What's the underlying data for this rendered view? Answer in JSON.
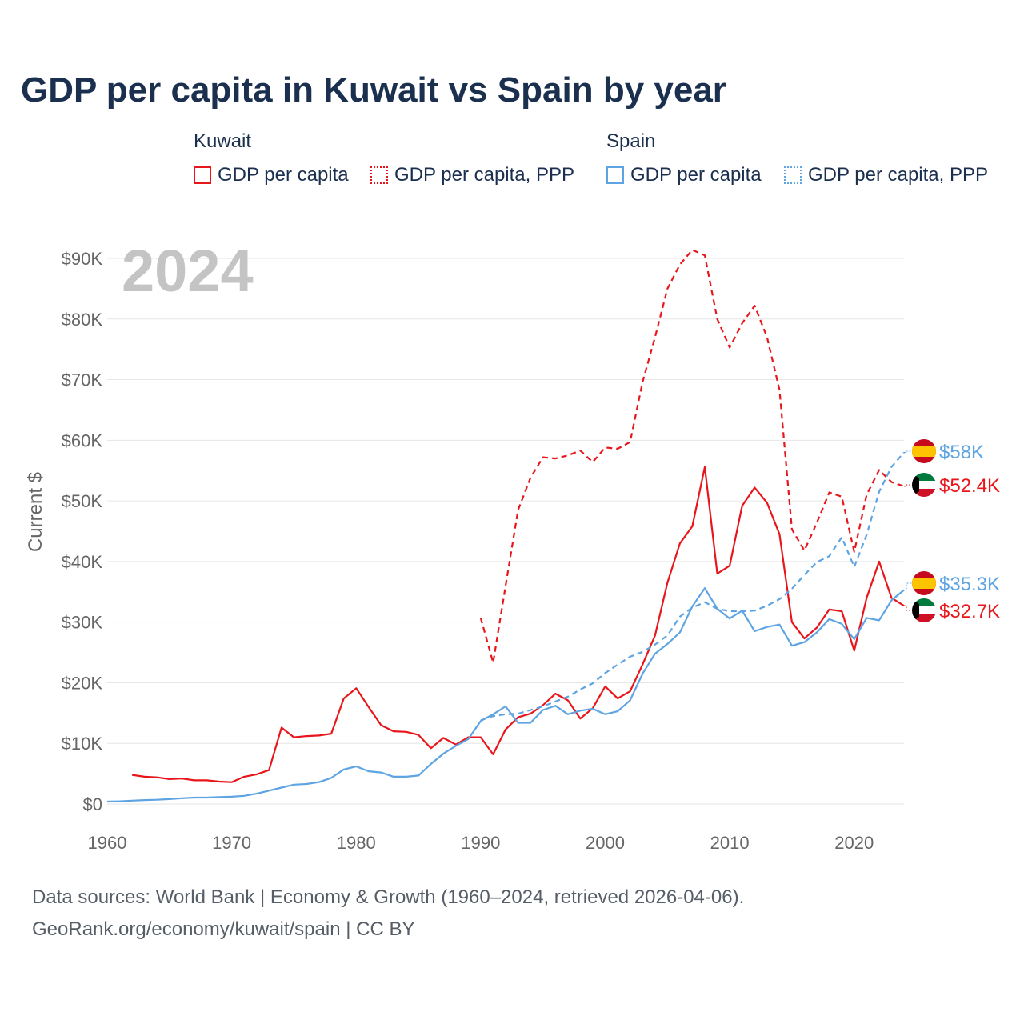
{
  "title": "GDP per capita in Kuwait vs Spain by year",
  "legend": {
    "groups": [
      {
        "country": "Kuwait",
        "items": [
          "GDP per capita",
          "GDP per capita, PPP"
        ],
        "color": "#e8161b"
      },
      {
        "country": "Spain",
        "items": [
          "GDP per capita",
          "GDP per capita, PPP"
        ],
        "color": "#5ea4e2"
      }
    ]
  },
  "year_label": "2024",
  "source": {
    "line1": "Data sources: World Bank | Economy & Growth (1960–2024, retrieved 2026-04-06).",
    "line2": "GeoRank.org/economy/kuwait/spain | CC BY"
  },
  "chart_data": {
    "type": "line",
    "ylabel": "Current $",
    "xlim": [
      1960,
      2024
    ],
    "ylim": [
      0,
      90000
    ],
    "x_ticks": [
      "1960",
      "1970",
      "1980",
      "1990",
      "2000",
      "2010",
      "2020"
    ],
    "y_ticks": [
      "$0",
      "$10K",
      "$20K",
      "$30K",
      "$40K",
      "$50K",
      "$60K",
      "$70K",
      "$80K",
      "$90K"
    ],
    "grid": true,
    "series": [
      {
        "name": "Kuwait GDP per capita",
        "country": "Kuwait",
        "color": "#e8161b",
        "dashed": false,
        "x": [
          1962,
          1963,
          1964,
          1965,
          1966,
          1967,
          1968,
          1969,
          1970,
          1971,
          1972,
          1973,
          1974,
          1975,
          1976,
          1977,
          1978,
          1979,
          1980,
          1981,
          1982,
          1983,
          1984,
          1985,
          1986,
          1987,
          1988,
          1989,
          1990,
          1991,
          1992,
          1993,
          1994,
          1995,
          1996,
          1997,
          1998,
          1999,
          2000,
          2001,
          2002,
          2003,
          2004,
          2005,
          2006,
          2007,
          2008,
          2009,
          2010,
          2011,
          2012,
          2013,
          2014,
          2015,
          2016,
          2017,
          2018,
          2019,
          2020,
          2021,
          2022,
          2023,
          2024
        ],
        "y": [
          4800,
          4500,
          4400,
          4100,
          4200,
          3900,
          3900,
          3700,
          3600,
          4500,
          4900,
          5600,
          12600,
          11000,
          11200,
          11300,
          11600,
          17400,
          19100,
          16000,
          13000,
          12000,
          11900,
          11400,
          9200,
          10900,
          9800,
          11000,
          11000,
          8200,
          12300,
          14300,
          14900,
          16300,
          18200,
          17100,
          14100,
          15800,
          19400,
          17400,
          18600,
          23000,
          27800,
          36500,
          43000,
          45800,
          55600,
          38000,
          39300,
          49200,
          52200,
          49700,
          44500,
          30000,
          27300,
          29100,
          32100,
          31800,
          25300,
          34000,
          40000,
          34000,
          32700
        ],
        "end_label": "$32.7K"
      },
      {
        "name": "Kuwait GDP per capita, PPP",
        "country": "Kuwait",
        "color": "#e8161b",
        "dashed": true,
        "x": [
          1990,
          1991,
          1992,
          1993,
          1994,
          1995,
          1996,
          1997,
          1998,
          1999,
          2000,
          2001,
          2002,
          2003,
          2004,
          2005,
          2006,
          2007,
          2008,
          2009,
          2010,
          2011,
          2012,
          2013,
          2014,
          2015,
          2016,
          2017,
          2018,
          2019,
          2020,
          2021,
          2022,
          2023,
          2024
        ],
        "y": [
          30700,
          23300,
          36000,
          48500,
          53800,
          57200,
          57000,
          57500,
          58300,
          56400,
          58800,
          58600,
          59700,
          69600,
          77000,
          85000,
          89000,
          91400,
          90500,
          80000,
          75300,
          79300,
          82200,
          77000,
          68300,
          45300,
          41800,
          46400,
          51400,
          50700,
          41600,
          51000,
          55100,
          53100,
          52400
        ],
        "end_label": "$52.4K"
      },
      {
        "name": "Spain GDP per capita",
        "country": "Spain",
        "color": "#5ea4e2",
        "dashed": false,
        "x": [
          1960,
          1961,
          1962,
          1963,
          1964,
          1965,
          1966,
          1967,
          1968,
          1969,
          1970,
          1971,
          1972,
          1973,
          1974,
          1975,
          1976,
          1977,
          1978,
          1979,
          1980,
          1981,
          1982,
          1983,
          1984,
          1985,
          1986,
          1987,
          1988,
          1989,
          1990,
          1991,
          1992,
          1993,
          1994,
          1995,
          1996,
          1997,
          1998,
          1999,
          2000,
          2001,
          2002,
          2003,
          2004,
          2005,
          2006,
          2007,
          2008,
          2009,
          2010,
          2011,
          2012,
          2013,
          2014,
          2015,
          2016,
          2017,
          2018,
          2019,
          2020,
          2021,
          2022,
          2023,
          2024
        ],
        "y": [
          400,
          450,
          550,
          650,
          700,
          800,
          950,
          1050,
          1050,
          1150,
          1200,
          1350,
          1700,
          2200,
          2700,
          3200,
          3300,
          3600,
          4300,
          5700,
          6200,
          5400,
          5200,
          4500,
          4500,
          4700,
          6600,
          8300,
          9600,
          10700,
          13700,
          14800,
          16100,
          13400,
          13400,
          15500,
          16200,
          14800,
          15400,
          15700,
          14800,
          15300,
          17100,
          21500,
          24800,
          26400,
          28300,
          32600,
          35600,
          32200,
          30600,
          31900,
          28500,
          29200,
          29600,
          26100,
          26700,
          28300,
          30500,
          29700,
          27200,
          30700,
          30300,
          33600,
          35300
        ],
        "end_label": "$35.3K"
      },
      {
        "name": "Spain GDP per capita, PPP",
        "country": "Spain",
        "color": "#5ea4e2",
        "dashed": true,
        "x": [
          1990,
          1991,
          1992,
          1993,
          1994,
          1995,
          1996,
          1997,
          1998,
          1999,
          2000,
          2001,
          2002,
          2003,
          2004,
          2005,
          2006,
          2007,
          2008,
          2009,
          2010,
          2011,
          2012,
          2013,
          2014,
          2015,
          2016,
          2017,
          2018,
          2019,
          2020,
          2021,
          2022,
          2023,
          2024
        ],
        "y": [
          13800,
          14500,
          14800,
          14900,
          15500,
          16100,
          16900,
          17700,
          18900,
          19900,
          21600,
          23000,
          24300,
          25100,
          26300,
          27800,
          30900,
          32400,
          33300,
          32200,
          31800,
          31800,
          31900,
          32700,
          33800,
          35500,
          37800,
          39900,
          40900,
          44000,
          39100,
          44400,
          51500,
          55600,
          58000
        ],
        "end_label": "$58K"
      }
    ]
  }
}
